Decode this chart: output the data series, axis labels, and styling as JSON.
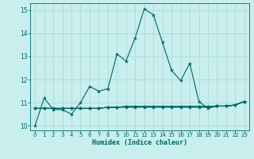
{
  "xlabel": "Humidex (Indice chaleur)",
  "background_color": "#c8eeee",
  "grid_color": "#b0dddd",
  "line_color": "#006666",
  "xlim": [
    -0.5,
    23.5
  ],
  "ylim": [
    9.8,
    15.3
  ],
  "yticks": [
    10,
    11,
    12,
    13,
    14,
    15
  ],
  "xticks": [
    0,
    1,
    2,
    3,
    4,
    5,
    6,
    7,
    8,
    9,
    10,
    11,
    12,
    13,
    14,
    15,
    16,
    17,
    18,
    19,
    20,
    21,
    22,
    23
  ],
  "x": [
    0,
    1,
    2,
    3,
    4,
    5,
    6,
    7,
    8,
    9,
    10,
    11,
    12,
    13,
    14,
    15,
    16,
    17,
    18,
    19,
    20,
    21,
    22,
    23
  ],
  "y_main": [
    10.0,
    11.2,
    10.7,
    10.7,
    10.5,
    11.0,
    11.7,
    11.5,
    11.6,
    13.1,
    12.8,
    13.8,
    15.05,
    14.8,
    13.6,
    12.4,
    11.95,
    12.7,
    11.05,
    10.75,
    10.85,
    10.85,
    10.9,
    11.05
  ],
  "y_flat1": [
    10.75,
    10.75,
    10.75,
    10.75,
    10.75,
    10.75,
    10.75,
    10.75,
    10.8,
    10.8,
    10.8,
    10.8,
    10.8,
    10.8,
    10.8,
    10.8,
    10.8,
    10.8,
    10.8,
    10.8,
    10.85,
    10.85,
    10.9,
    11.05
  ],
  "y_flat2": [
    10.75,
    10.75,
    10.75,
    10.75,
    10.75,
    10.75,
    10.75,
    10.75,
    10.8,
    10.8,
    10.82,
    10.82,
    10.82,
    10.82,
    10.82,
    10.82,
    10.82,
    10.82,
    10.82,
    10.82,
    10.85,
    10.85,
    10.9,
    11.05
  ],
  "y_flat3": [
    10.75,
    10.75,
    10.75,
    10.75,
    10.75,
    10.75,
    10.75,
    10.75,
    10.8,
    10.8,
    10.84,
    10.84,
    10.84,
    10.84,
    10.84,
    10.84,
    10.84,
    10.84,
    10.84,
    10.84,
    10.85,
    10.85,
    10.9,
    11.05
  ]
}
